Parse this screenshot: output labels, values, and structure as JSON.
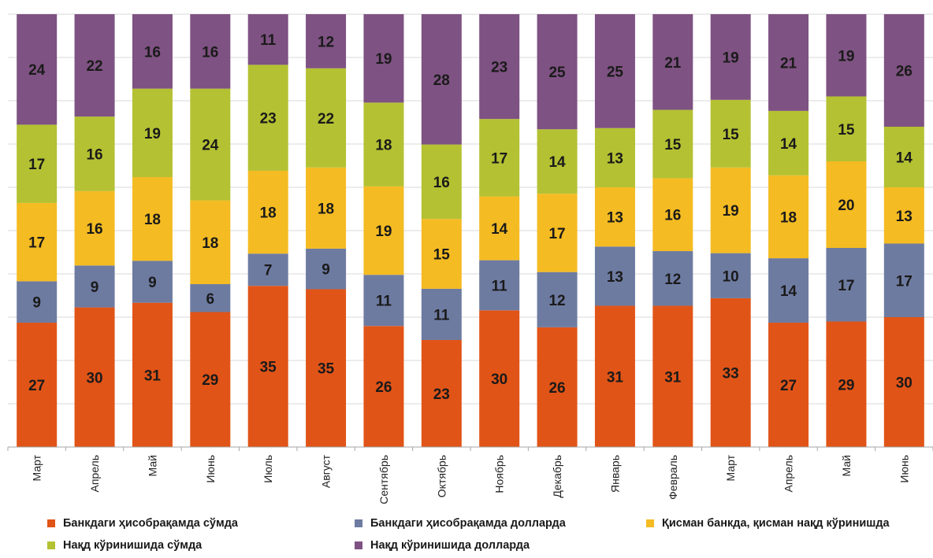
{
  "chart_data": {
    "type": "bar",
    "stacked": true,
    "categories": [
      "Март",
      "Апрель",
      "Май",
      "Июнь",
      "Июль",
      "Август",
      "Сентябрь",
      "Октябрь",
      "Ноябрь",
      "Декабрь",
      "Январь",
      "Февраль",
      "Март",
      "Апрель",
      "Май",
      "Июнь"
    ],
    "series": [
      {
        "name": "Банкдаги ҳисобрақамда сўмда",
        "color": "#E15417",
        "values": [
          27,
          30,
          31,
          29,
          35,
          35,
          26,
          23,
          30,
          26,
          31,
          31,
          33,
          27,
          29,
          30
        ]
      },
      {
        "name": "Банкдаги ҳисобрақамда долларда",
        "color": "#6E7BA1",
        "values": [
          9,
          9,
          9,
          6,
          7,
          9,
          11,
          11,
          11,
          12,
          13,
          12,
          10,
          14,
          17,
          17
        ]
      },
      {
        "name": "Қисман банкда, қисман нақд кўринишда",
        "color": "#F4BB22",
        "values": [
          17,
          16,
          18,
          18,
          18,
          18,
          19,
          15,
          14,
          17,
          13,
          16,
          19,
          18,
          20,
          13
        ]
      },
      {
        "name": "Нақд кўринишида сўмда",
        "color": "#B4C132",
        "values": [
          17,
          16,
          19,
          24,
          23,
          22,
          18,
          16,
          17,
          14,
          13,
          15,
          15,
          14,
          15,
          14
        ]
      },
      {
        "name": "Нақд кўринишида долларда",
        "color": "#7E5282",
        "values": [
          24,
          22,
          16,
          16,
          11,
          12,
          19,
          28,
          23,
          25,
          25,
          21,
          19,
          21,
          19,
          26
        ]
      }
    ],
    "ylim": [
      0,
      100
    ],
    "grid": true,
    "legend_position": "bottom"
  }
}
